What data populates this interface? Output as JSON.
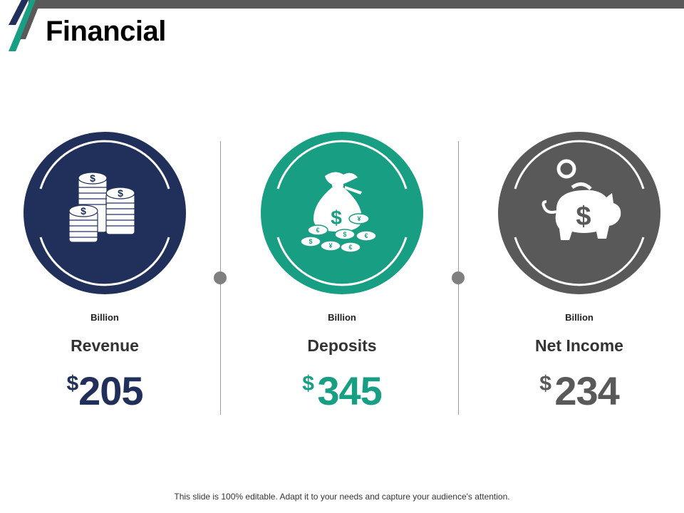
{
  "slide": {
    "title": "Financial",
    "footer": "This slide is 100% editable. Adapt it to your needs and capture your audience's attention."
  },
  "colors": {
    "navy": "#21305a",
    "teal": "#189f83",
    "gray": "#595959",
    "divider_dot": "#7f7f7f"
  },
  "cards": [
    {
      "icon": "coin-stack-icon",
      "unit": "Billion",
      "label": "Revenue",
      "currency": "$",
      "value": "205"
    },
    {
      "icon": "money-bag-icon",
      "unit": "Billion",
      "label": "Deposits",
      "currency": "$",
      "value": "345"
    },
    {
      "icon": "piggy-bank-icon",
      "unit": "Billion",
      "label": "Net Income",
      "currency": "$",
      "value": "234"
    }
  ]
}
